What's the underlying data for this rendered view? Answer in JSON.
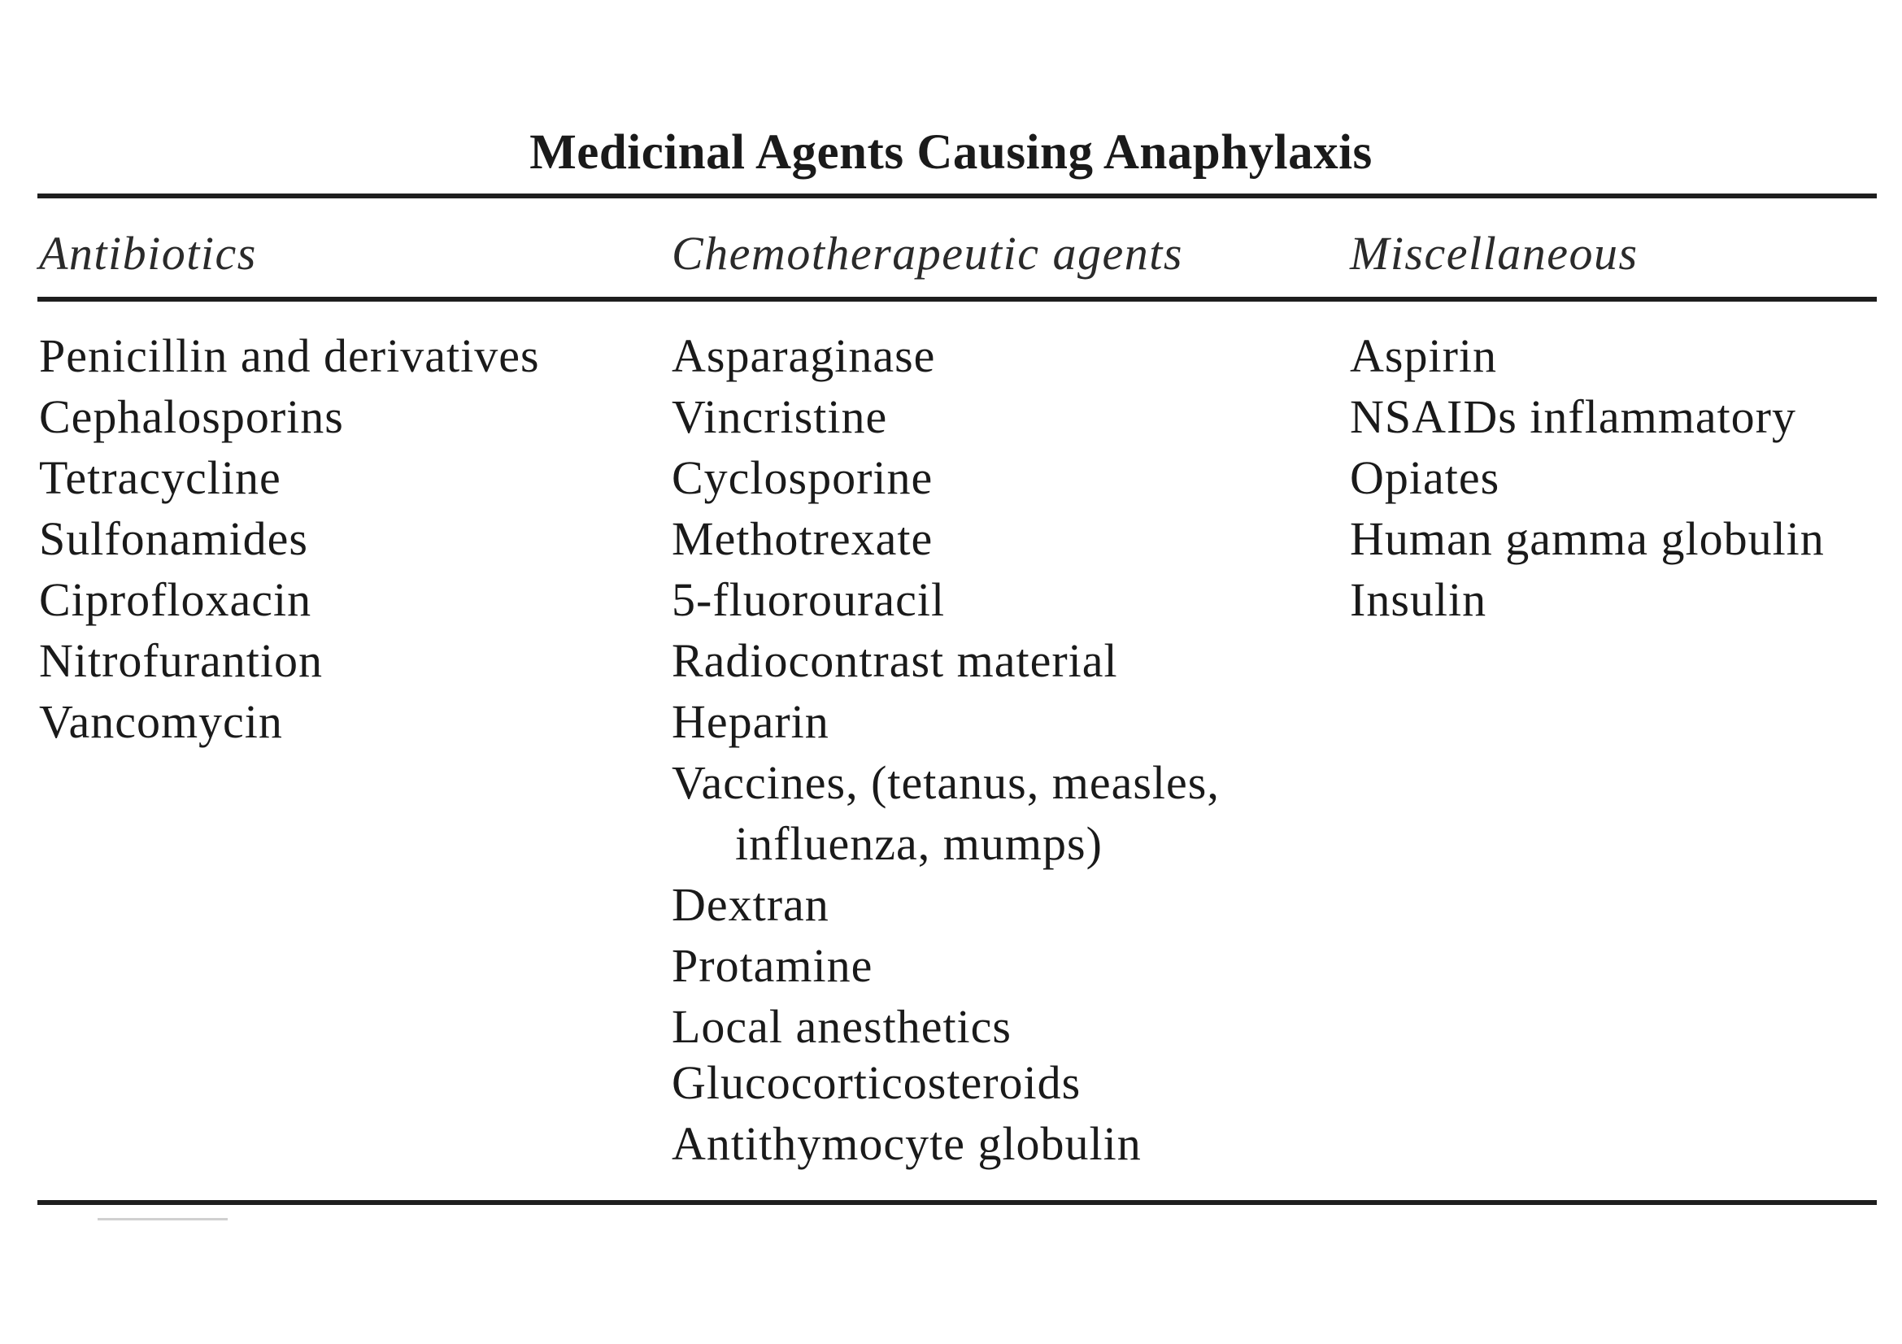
{
  "table": {
    "title": "Medicinal Agents Causing Anaphylaxis",
    "columns": [
      {
        "header": "Antibiotics",
        "items": [
          "Penicillin and derivatives",
          "Cephalosporins",
          "Tetracycline",
          "Sulfonamides",
          "Ciprofloxacin",
          "Nitrofurantion",
          "Vancomycin"
        ]
      },
      {
        "header": "Chemotherapeutic agents",
        "items": [
          "Asparaginase",
          "Vincristine",
          "Cyclosporine",
          "Methotrexate",
          "5-fluorouracil",
          "Radiocontrast material",
          "Heparin",
          "Vaccines, (tetanus, measles,",
          "influenza, mumps)",
          "Dextran",
          "Protamine",
          "Local anesthetics",
          "Glucocorticosteroids",
          "Antithymocyte globulin"
        ]
      },
      {
        "header": "Miscellaneous",
        "items": [
          "Aspirin",
          "NSAIDs  inflammatory",
          "Opiates",
          "Human gamma globulin",
          "Insulin"
        ]
      }
    ]
  }
}
